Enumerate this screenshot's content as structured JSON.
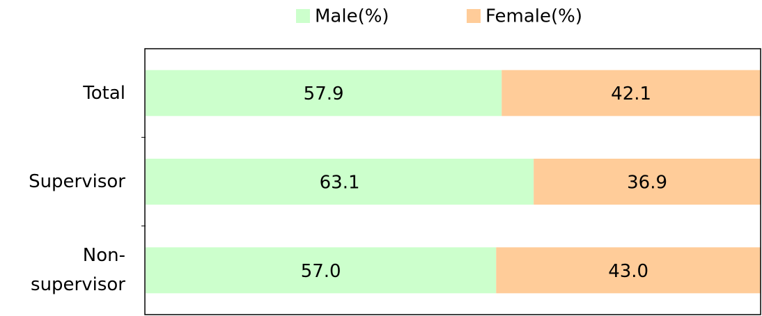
{
  "chart_data": {
    "type": "stacked_barh",
    "categories": [
      "Total",
      "Supervisor",
      "Non-supervisor"
    ],
    "series": [
      {
        "name": "Male(%)",
        "color": "#ccffcc",
        "values": [
          57.9,
          63.1,
          57.0
        ],
        "value_labels": [
          "57.9",
          "63.1",
          "57.0"
        ]
      },
      {
        "name": "Female(%)",
        "color": "#ffcc99",
        "values": [
          42.1,
          36.9,
          43.0
        ],
        "value_labels": [
          "42.1",
          "36.9",
          "43.0"
        ]
      }
    ],
    "legend": "top"
  }
}
